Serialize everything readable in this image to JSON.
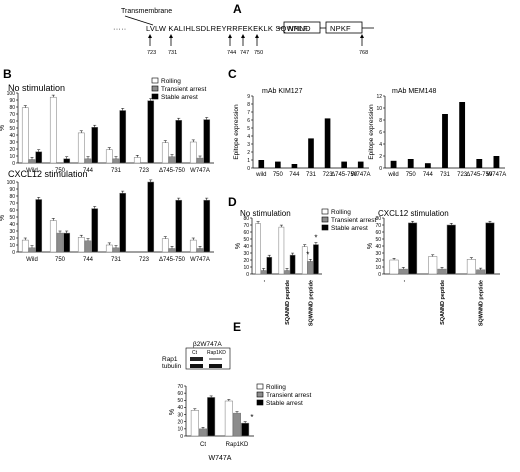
{
  "panel_labels": {
    "A": "A",
    "B": "B",
    "C": "C",
    "D": "D",
    "E": "E"
  },
  "panelA": {
    "header": "Transmembrane",
    "sequence_main": "LVLW KALIHLSDLREYRRFEKEKLK SQWNND",
    "sequence_lead": "·····",
    "npxf1": "NPLF",
    "npxf2": "NPKF",
    "positions": [
      "723",
      "731",
      "744",
      "747",
      "750",
      "768"
    ]
  },
  "colors": {
    "rolling": "#ffffff",
    "transient": "#8c8c8c",
    "stable": "#000000"
  },
  "legend": {
    "rolling": "Rolling",
    "transient": "Transient arrest",
    "stable": "Stable arrest"
  },
  "chart_data": [
    {
      "id": "B-top",
      "type": "bar",
      "title": "No stimulation",
      "ylabel": "%",
      "ylim": [
        0,
        100
      ],
      "yticks": [
        0,
        10,
        20,
        30,
        40,
        50,
        60,
        70,
        80,
        90,
        100
      ],
      "categories": [
        "Wild",
        "750",
        "744",
        "731",
        "723",
        "Δ745-750",
        "W747A"
      ],
      "series": [
        {
          "name": "Rolling",
          "values": [
            79,
            94,
            43,
            19,
            8,
            29,
            30
          ]
        },
        {
          "name": "Transient arrest",
          "values": [
            5,
            0,
            6,
            6,
            0,
            9,
            7
          ]
        },
        {
          "name": "Stable arrest",
          "values": [
            16,
            6,
            51,
            75,
            89,
            61,
            62
          ]
        }
      ]
    },
    {
      "id": "B-bottom",
      "type": "bar",
      "title": "CXCL12 stimulation",
      "ylabel": "%",
      "ylim": [
        0,
        100
      ],
      "yticks": [
        0,
        10,
        20,
        30,
        40,
        50,
        60,
        70,
        80,
        90,
        100
      ],
      "categories": [
        "Wild",
        "750",
        "744",
        "731",
        "723",
        "Δ745-750",
        "W747A"
      ],
      "series": [
        {
          "name": "Rolling",
          "values": [
            17,
            45,
            21,
            10,
            0,
            19,
            17
          ]
        },
        {
          "name": "Transient arrest",
          "values": [
            6,
            27,
            16,
            6,
            0,
            5,
            5
          ]
        },
        {
          "name": "Stable arrest",
          "values": [
            75,
            27,
            62,
            84,
            100,
            74,
            74
          ]
        }
      ]
    },
    {
      "id": "C-left",
      "type": "bar",
      "title": "mAb KIM127",
      "ylabel": "Epitope expression",
      "ylim": [
        0,
        9
      ],
      "yticks": [
        0,
        1,
        2,
        3,
        4,
        5,
        6,
        7,
        8,
        9
      ],
      "categories": [
        "wild",
        "750",
        "744",
        "731",
        "723",
        "Δ745-750",
        "W747A"
      ],
      "series": [
        {
          "name": "",
          "values": [
            1,
            0.8,
            0.5,
            3.7,
            6.2,
            0.8,
            0.8
          ]
        }
      ]
    },
    {
      "id": "C-right",
      "type": "bar",
      "title": "mAb MEM148",
      "ylabel": "Epitope expression",
      "ylim": [
        0,
        12
      ],
      "yticks": [
        0,
        2,
        4,
        6,
        8,
        10,
        12
      ],
      "categories": [
        "wild",
        "750",
        "744",
        "731",
        "723",
        "Δ745-750",
        "W747A"
      ],
      "series": [
        {
          "name": "",
          "values": [
            1.2,
            1.5,
            0.8,
            9,
            11,
            1.5,
            2
          ]
        }
      ]
    },
    {
      "id": "D-left",
      "type": "bar",
      "title": "No stimulation",
      "ylabel": "%",
      "ylim": [
        0,
        80
      ],
      "yticks": [
        0,
        10,
        20,
        30,
        40,
        50,
        60,
        70,
        80
      ],
      "categories": [
        "-",
        "SQANND peptide",
        "SQWNND peptide"
      ],
      "series": [
        {
          "name": "Rolling",
          "values": [
            72,
            67,
            39
          ]
        },
        {
          "name": "Transient arrest",
          "values": [
            5,
            5,
            18
          ]
        },
        {
          "name": "Stable arrest",
          "values": [
            24,
            27,
            42
          ]
        }
      ],
      "annotations": [
        "*",
        "*"
      ]
    },
    {
      "id": "D-right",
      "type": "bar",
      "title": "CXCL12 stimulation",
      "ylabel": "%",
      "ylim": [
        0,
        80
      ],
      "yticks": [
        0,
        10,
        20,
        30,
        40,
        50,
        60,
        70,
        80
      ],
      "categories": [
        "-",
        "SQANND peptide",
        "SQWNND peptide"
      ],
      "series": [
        {
          "name": "Rolling",
          "values": [
            20,
            25,
            21
          ]
        },
        {
          "name": "Transient arrest",
          "values": [
            7,
            7,
            6
          ]
        },
        {
          "name": "Stable arrest",
          "values": [
            73,
            70,
            73
          ]
        }
      ]
    },
    {
      "id": "E",
      "type": "bar",
      "ylabel": "%",
      "ylim": [
        0,
        70
      ],
      "yticks": [
        0,
        10,
        20,
        30,
        40,
        50,
        60,
        70
      ],
      "categories": [
        "Ct",
        "Rap1KD"
      ],
      "xlabel": "W747A",
      "series": [
        {
          "name": "Rolling",
          "values": [
            36,
            49
          ]
        },
        {
          "name": "Transient arrest",
          "values": [
            10,
            32
          ]
        },
        {
          "name": "Stable arrest",
          "values": [
            54,
            18
          ]
        }
      ],
      "annotations": [
        "*"
      ]
    }
  ],
  "blot": {
    "title": "β2W747A",
    "lanes": [
      "Ct",
      "Rap1KD"
    ],
    "rows": [
      "Rap1",
      "tubulin"
    ]
  }
}
